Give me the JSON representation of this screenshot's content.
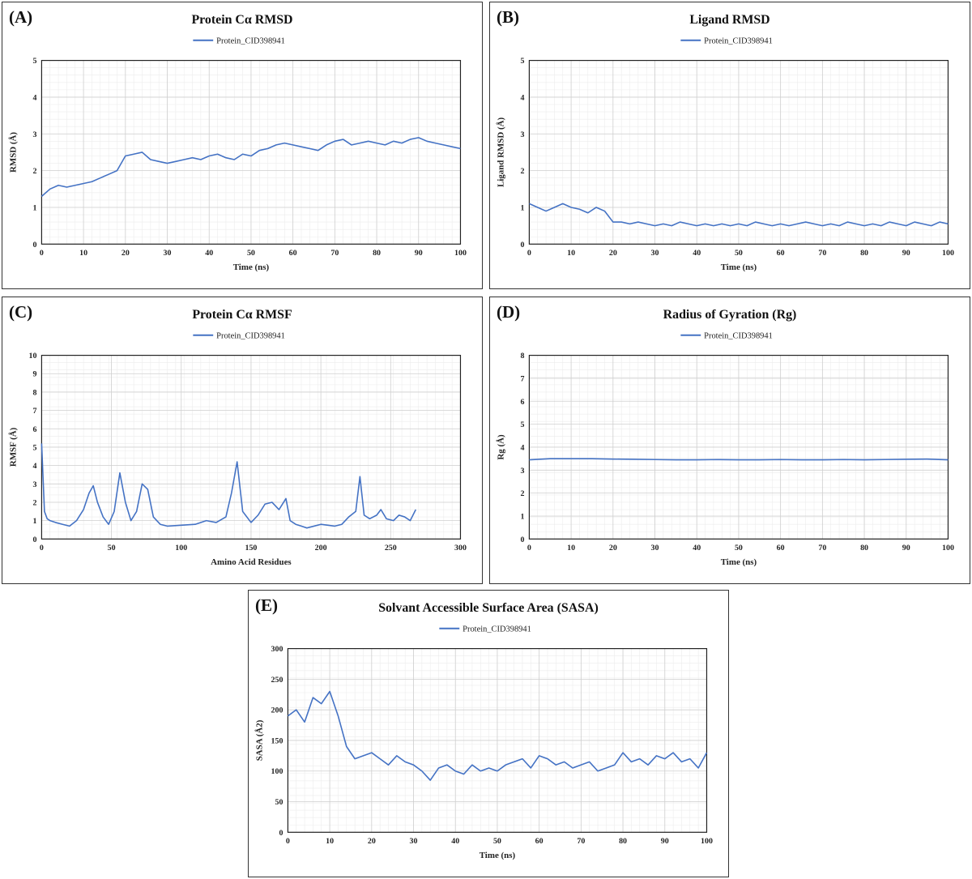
{
  "chart_data": [
    {
      "id": "A",
      "panel_label": "(A)",
      "type": "line",
      "title": "Protein Cα RMSD",
      "xlabel": "Time (ns)",
      "ylabel": "RMSD (Å)",
      "xlim": [
        0,
        100
      ],
      "ylim": [
        0,
        5
      ],
      "xticks": [
        0,
        10,
        20,
        30,
        40,
        50,
        60,
        70,
        80,
        90,
        100
      ],
      "yticks": [
        0,
        1,
        2,
        3,
        4,
        5
      ],
      "grid": true,
      "legend_position": "top-center",
      "series": [
        {
          "name": "Protein_CID398941",
          "color": "#4472c4",
          "x": [
            0,
            2,
            4,
            6,
            8,
            10,
            12,
            14,
            16,
            18,
            20,
            22,
            24,
            26,
            28,
            30,
            32,
            34,
            36,
            38,
            40,
            42,
            44,
            46,
            48,
            50,
            52,
            54,
            56,
            58,
            60,
            62,
            64,
            66,
            68,
            70,
            72,
            74,
            76,
            78,
            80,
            82,
            84,
            86,
            88,
            90,
            92,
            94,
            96,
            98,
            100
          ],
          "y": [
            1.3,
            1.5,
            1.6,
            1.55,
            1.6,
            1.65,
            1.7,
            1.8,
            1.9,
            2.0,
            2.4,
            2.45,
            2.5,
            2.3,
            2.25,
            2.2,
            2.25,
            2.3,
            2.35,
            2.3,
            2.4,
            2.45,
            2.35,
            2.3,
            2.45,
            2.4,
            2.55,
            2.6,
            2.7,
            2.75,
            2.7,
            2.65,
            2.6,
            2.55,
            2.7,
            2.8,
            2.85,
            2.7,
            2.75,
            2.8,
            2.75,
            2.7,
            2.8,
            2.75,
            2.85,
            2.9,
            2.8,
            2.75,
            2.7,
            2.65,
            2.6
          ]
        }
      ]
    },
    {
      "id": "B",
      "panel_label": "(B)",
      "type": "line",
      "title": "Ligand RMSD",
      "xlabel": "Time (ns)",
      "ylabel": "Ligand RMSD (Å)",
      "xlim": [
        0,
        100
      ],
      "ylim": [
        0,
        5
      ],
      "xticks": [
        0,
        10,
        20,
        30,
        40,
        50,
        60,
        70,
        80,
        90,
        100
      ],
      "yticks": [
        0,
        1,
        2,
        3,
        4,
        5
      ],
      "grid": true,
      "legend_position": "top-center",
      "series": [
        {
          "name": "Protein_CID398941",
          "color": "#4472c4",
          "x": [
            0,
            2,
            4,
            6,
            8,
            10,
            12,
            14,
            16,
            18,
            20,
            22,
            24,
            26,
            28,
            30,
            32,
            34,
            36,
            38,
            40,
            42,
            44,
            46,
            48,
            50,
            52,
            54,
            56,
            58,
            60,
            62,
            64,
            66,
            68,
            70,
            72,
            74,
            76,
            78,
            80,
            82,
            84,
            86,
            88,
            90,
            92,
            94,
            96,
            98,
            100
          ],
          "y": [
            1.1,
            1.0,
            0.9,
            1.0,
            1.1,
            1.0,
            0.95,
            0.85,
            1.0,
            0.9,
            0.6,
            0.6,
            0.55,
            0.6,
            0.55,
            0.5,
            0.55,
            0.5,
            0.6,
            0.55,
            0.5,
            0.55,
            0.5,
            0.55,
            0.5,
            0.55,
            0.5,
            0.6,
            0.55,
            0.5,
            0.55,
            0.5,
            0.55,
            0.6,
            0.55,
            0.5,
            0.55,
            0.5,
            0.6,
            0.55,
            0.5,
            0.55,
            0.5,
            0.6,
            0.55,
            0.5,
            0.6,
            0.55,
            0.5,
            0.6,
            0.55
          ]
        }
      ]
    },
    {
      "id": "C",
      "panel_label": "(C)",
      "type": "line",
      "title": "Protein Cα RMSF",
      "xlabel": "Amino Acid Residues",
      "ylabel": "RMSF (Å)",
      "xlim": [
        0,
        300
      ],
      "ylim": [
        0,
        10
      ],
      "xticks": [
        0,
        50,
        100,
        150,
        200,
        250,
        300
      ],
      "yticks": [
        0,
        1,
        2,
        3,
        4,
        5,
        6,
        7,
        8,
        9,
        10
      ],
      "grid": true,
      "legend_position": "top-center",
      "series": [
        {
          "name": "Protein_CID398941",
          "color": "#4472c4",
          "x": [
            0,
            2,
            4,
            6,
            10,
            15,
            20,
            25,
            30,
            34,
            37,
            40,
            44,
            48,
            52,
            56,
            60,
            64,
            68,
            72,
            76,
            80,
            85,
            90,
            100,
            110,
            118,
            125,
            132,
            136,
            140,
            144,
            150,
            155,
            160,
            165,
            170,
            175,
            178,
            182,
            186,
            190,
            200,
            210,
            215,
            220,
            225,
            228,
            231,
            235,
            240,
            243,
            247,
            252,
            256,
            260,
            264,
            268
          ],
          "y": [
            5.2,
            1.5,
            1.1,
            1.0,
            0.9,
            0.8,
            0.7,
            1.0,
            1.6,
            2.5,
            2.9,
            2.0,
            1.2,
            0.8,
            1.5,
            3.6,
            2.0,
            1.0,
            1.5,
            3.0,
            2.7,
            1.2,
            0.8,
            0.7,
            0.75,
            0.8,
            1.0,
            0.9,
            1.2,
            2.5,
            4.2,
            1.5,
            0.9,
            1.3,
            1.9,
            2.0,
            1.6,
            2.2,
            1.0,
            0.8,
            0.7,
            0.6,
            0.8,
            0.7,
            0.8,
            1.2,
            1.5,
            3.4,
            1.3,
            1.1,
            1.3,
            1.6,
            1.1,
            1.0,
            1.3,
            1.2,
            1.0,
            1.6
          ]
        }
      ]
    },
    {
      "id": "D",
      "panel_label": "(D)",
      "type": "line",
      "title": "Radius of Gyration (Rg)",
      "xlabel": "Time (ns)",
      "ylabel": "Rg (Å)",
      "xlim": [
        0,
        100
      ],
      "ylim": [
        0,
        8
      ],
      "xticks": [
        0,
        10,
        20,
        30,
        40,
        50,
        60,
        70,
        80,
        90,
        100
      ],
      "yticks": [
        0,
        1,
        2,
        3,
        4,
        5,
        6,
        7,
        8
      ],
      "grid": true,
      "legend_position": "top-center",
      "series": [
        {
          "name": "Protein_CID398941",
          "color": "#4472c4",
          "x": [
            0,
            5,
            10,
            15,
            20,
            25,
            30,
            35,
            40,
            45,
            50,
            55,
            60,
            65,
            70,
            75,
            80,
            85,
            90,
            95,
            100
          ],
          "y": [
            3.45,
            3.5,
            3.5,
            3.5,
            3.48,
            3.47,
            3.46,
            3.45,
            3.45,
            3.46,
            3.45,
            3.45,
            3.46,
            3.45,
            3.45,
            3.46,
            3.45,
            3.46,
            3.47,
            3.48,
            3.45
          ]
        }
      ]
    },
    {
      "id": "E",
      "panel_label": "(E)",
      "type": "line",
      "title": "Solvant Accessible Surface Area (SASA)",
      "xlabel": "Time (ns)",
      "ylabel": "SASA (Å2)",
      "xlim": [
        0,
        100
      ],
      "ylim": [
        0,
        300
      ],
      "xticks": [
        0,
        10,
        20,
        30,
        40,
        50,
        60,
        70,
        80,
        90,
        100
      ],
      "yticks": [
        0,
        50,
        100,
        150,
        200,
        250,
        300
      ],
      "grid": true,
      "legend_position": "top-center",
      "series": [
        {
          "name": "Protein_CID398941",
          "color": "#4472c4",
          "x": [
            0,
            2,
            4,
            6,
            8,
            10,
            12,
            14,
            16,
            18,
            20,
            22,
            24,
            26,
            28,
            30,
            32,
            34,
            36,
            38,
            40,
            42,
            44,
            46,
            48,
            50,
            52,
            54,
            56,
            58,
            60,
            62,
            64,
            66,
            68,
            70,
            72,
            74,
            76,
            78,
            80,
            82,
            84,
            86,
            88,
            90,
            92,
            94,
            96,
            98,
            100
          ],
          "y": [
            190,
            200,
            180,
            220,
            210,
            230,
            190,
            140,
            120,
            125,
            130,
            120,
            110,
            125,
            115,
            110,
            100,
            85,
            105,
            110,
            100,
            95,
            110,
            100,
            105,
            100,
            110,
            115,
            120,
            105,
            125,
            120,
            110,
            115,
            105,
            110,
            115,
            100,
            105,
            110,
            130,
            115,
            120,
            110,
            125,
            120,
            130,
            115,
            120,
            105,
            130
          ]
        }
      ]
    }
  ]
}
